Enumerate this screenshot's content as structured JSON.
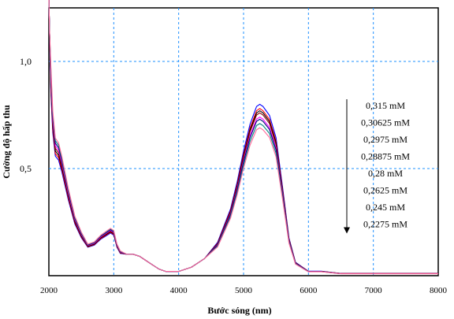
{
  "chart_data": {
    "type": "line",
    "xlabel": "Bước sóng (nm)",
    "ylabel": "Cường độ hấp thu",
    "xlim": [
      2000,
      8000
    ],
    "ylim": [
      0.0,
      1.25
    ],
    "x_ticks": [
      2000,
      3000,
      4000,
      5000,
      6000,
      7000,
      8000
    ],
    "x_tick_labels": [
      "2000",
      "3000",
      "4000",
      "5000",
      "6000",
      "7000",
      "8000"
    ],
    "y_ticks": [
      0.5,
      1.0
    ],
    "y_tick_labels": [
      "0,5",
      "1,0"
    ],
    "grid": true,
    "legend_position": "right",
    "legend_arrow": "downward",
    "series": [
      {
        "name": "0,315 mM",
        "peak_value": 0.8,
        "color": "#0000ff"
      },
      {
        "name": "0,30625 mM",
        "peak_value": 0.78,
        "color": "#ff0000"
      },
      {
        "name": "0,2975 mM",
        "peak_value": 0.77,
        "color": "#000000"
      },
      {
        "name": "0,28875 mM",
        "peak_value": 0.76,
        "color": "#8b0000"
      },
      {
        "name": "0,28  mM",
        "peak_value": 0.74,
        "color": "#ff00ff"
      },
      {
        "name": "0,2625 mM",
        "peak_value": 0.73,
        "color": "#000080"
      },
      {
        "name": "0,245  mM",
        "peak_value": 0.71,
        "color": "#008080"
      },
      {
        "name": "0,2275 mM",
        "peak_value": 0.69,
        "color": "#ff6699"
      }
    ],
    "base_profile": {
      "x": [
        2000,
        2010,
        2030,
        2060,
        2100,
        2150,
        2200,
        2300,
        2400,
        2500,
        2600,
        2700,
        2800,
        2900,
        2950,
        3000,
        3050,
        3100,
        3200,
        3300,
        3400,
        3500,
        3600,
        3700,
        3800,
        3900,
        4000,
        4200,
        4400,
        4600,
        4800,
        4900,
        5000,
        5100,
        5200,
        5250,
        5300,
        5400,
        5500,
        5600,
        5700,
        5800,
        5900,
        6000,
        6200,
        6500,
        7000,
        7500,
        8000
      ],
      "y": [
        1.3,
        1.15,
        0.92,
        0.72,
        0.6,
        0.58,
        0.52,
        0.38,
        0.26,
        0.19,
        0.14,
        0.15,
        0.18,
        0.2,
        0.21,
        0.2,
        0.14,
        0.11,
        0.1,
        0.1,
        0.09,
        0.07,
        0.05,
        0.03,
        0.02,
        0.02,
        0.02,
        0.04,
        0.08,
        0.15,
        0.3,
        0.42,
        0.56,
        0.68,
        0.76,
        0.77,
        0.76,
        0.72,
        0.62,
        0.4,
        0.17,
        0.06,
        0.04,
        0.02,
        0.02,
        0.01,
        0.01,
        0.01,
        0.01
      ]
    }
  }
}
